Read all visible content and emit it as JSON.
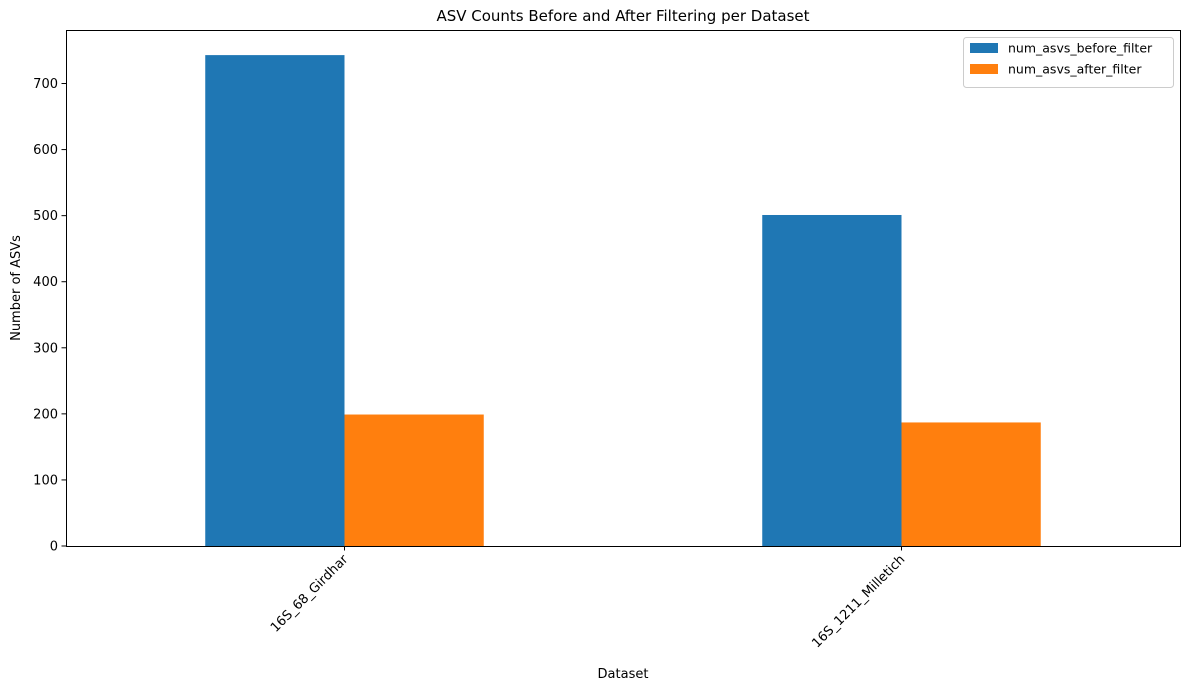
{
  "chart_data": {
    "type": "bar",
    "title": "ASV Counts Before and After Filtering per Dataset",
    "xlabel": "Dataset",
    "ylabel": "Number of ASVs",
    "categories": [
      "16S_68_Girdhar",
      "16S_1211_Milletich"
    ],
    "series": [
      {
        "name": "num_asvs_before_filter",
        "color": "#1f77b4",
        "values": [
          743,
          501
        ]
      },
      {
        "name": "num_asvs_after_filter",
        "color": "#ff7f0e",
        "values": [
          199,
          187
        ]
      }
    ],
    "ylim": [
      0,
      781
    ],
    "yticks": [
      0,
      100,
      200,
      300,
      400,
      500,
      600,
      700
    ],
    "grid": false,
    "legend_position": "top-right"
  }
}
